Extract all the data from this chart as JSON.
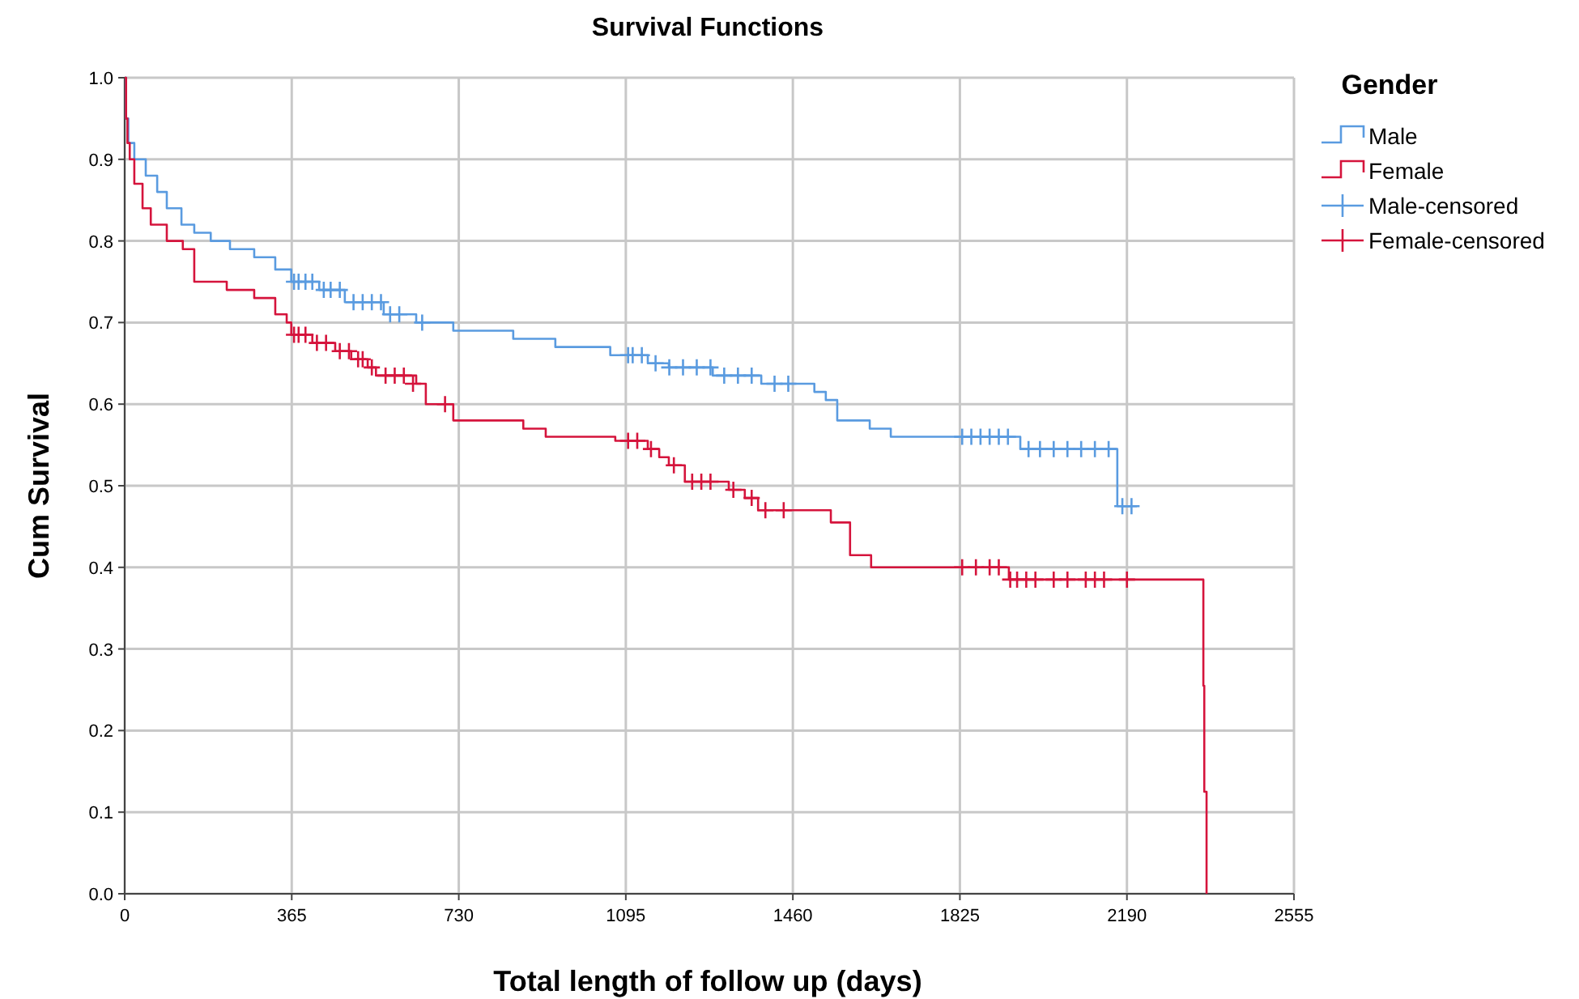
{
  "chart_data": {
    "type": "step",
    "title": "Survival Functions",
    "xlabel": "Total length of follow up (days)",
    "ylabel": "Cum Survival",
    "legend_title": "Gender",
    "legend": "right",
    "grid": true,
    "xlim": [
      0,
      2555
    ],
    "xticks": [
      0,
      365,
      730,
      1095,
      1460,
      1825,
      2190,
      2555
    ],
    "ylim": [
      0,
      1
    ],
    "yticks": [
      {
        "value": 0,
        "label": "0.0"
      },
      {
        "value": 0.1,
        "label": "0.1"
      },
      {
        "value": 0.2,
        "label": "0.2"
      },
      {
        "value": 0.3,
        "label": "0.3"
      },
      {
        "value": 0.4,
        "label": "0.4"
      },
      {
        "value": 0.5,
        "label": "0.5"
      },
      {
        "value": 0.6,
        "label": "0.6"
      },
      {
        "value": 0.7,
        "label": "0.7"
      },
      {
        "value": 0.8,
        "label": "0.8"
      },
      {
        "value": 0.9,
        "label": "0.9"
      },
      {
        "value": 1,
        "label": "1.0"
      }
    ],
    "series": [
      {
        "name": "Male",
        "color": "#5a9be0",
        "x": [
          0,
          3,
          8,
          21,
          46,
          71,
          92,
          124,
          152,
          188,
          230,
          283,
          329,
          364,
          425,
          481,
          566,
          637,
          718,
          849,
          941,
          1061,
          1143,
          1189,
          1285,
          1391,
          1507,
          1532,
          1557,
          1628,
          1674,
          1957,
          2169,
          2212
        ],
        "values": [
          1,
          0.95,
          0.92,
          0.9,
          0.88,
          0.86,
          0.84,
          0.82,
          0.81,
          0.8,
          0.79,
          0.78,
          0.765,
          0.75,
          0.74,
          0.725,
          0.71,
          0.7,
          0.69,
          0.68,
          0.67,
          0.66,
          0.65,
          0.645,
          0.635,
          0.625,
          0.615,
          0.605,
          0.58,
          0.57,
          0.56,
          0.545,
          0.475,
          0.475
        ]
      },
      {
        "name": "Female",
        "color": "#d5143c",
        "x": [
          0,
          3,
          6,
          11,
          21,
          39,
          57,
          92,
          127,
          152,
          223,
          283,
          329,
          354,
          364,
          410,
          460,
          495,
          531,
          549,
          637,
          658,
          718,
          871,
          920,
          1072,
          1143,
          1168,
          1189,
          1224,
          1320,
          1355,
          1384,
          1543,
          1585,
          1631,
          1932,
          2357,
          2359,
          2364
        ],
        "values": [
          1,
          0.95,
          0.92,
          0.9,
          0.87,
          0.84,
          0.82,
          0.8,
          0.79,
          0.75,
          0.74,
          0.73,
          0.71,
          0.7,
          0.685,
          0.675,
          0.665,
          0.655,
          0.645,
          0.635,
          0.625,
          0.6,
          0.58,
          0.57,
          0.56,
          0.555,
          0.545,
          0.535,
          0.525,
          0.505,
          0.495,
          0.485,
          0.47,
          0.455,
          0.415,
          0.4,
          0.385,
          0.255,
          0.125,
          0
        ]
      },
      {
        "name": "Male-censored",
        "type": "scatter",
        "marker": "cross",
        "color": "#5a9be0",
        "x": [
          370,
          380,
          395,
          410,
          435,
          450,
          470,
          500,
          520,
          540,
          560,
          580,
          600,
          650,
          1100,
          1110,
          1130,
          1160,
          1190,
          1220,
          1250,
          1280,
          1310,
          1340,
          1370,
          1420,
          1450,
          1830,
          1850,
          1870,
          1890,
          1910,
          1930,
          1975,
          2000,
          2030,
          2060,
          2090,
          2120,
          2150,
          2180,
          2200
        ],
        "values": [
          0.75,
          0.75,
          0.75,
          0.75,
          0.74,
          0.74,
          0.74,
          0.725,
          0.725,
          0.725,
          0.725,
          0.71,
          0.71,
          0.7,
          0.66,
          0.66,
          0.66,
          0.65,
          0.645,
          0.645,
          0.645,
          0.645,
          0.635,
          0.635,
          0.635,
          0.625,
          0.625,
          0.56,
          0.56,
          0.56,
          0.56,
          0.56,
          0.56,
          0.545,
          0.545,
          0.545,
          0.545,
          0.545,
          0.545,
          0.545,
          0.475,
          0.475
        ]
      },
      {
        "name": "Female-censored",
        "type": "scatter",
        "marker": "cross",
        "color": "#d5143c",
        "x": [
          370,
          380,
          395,
          420,
          440,
          470,
          490,
          510,
          520,
          540,
          570,
          590,
          610,
          630,
          700,
          1100,
          1120,
          1150,
          1200,
          1240,
          1260,
          1280,
          1330,
          1370,
          1400,
          1440,
          1830,
          1860,
          1890,
          1910,
          1935,
          1950,
          1970,
          1990,
          2030,
          2060,
          2100,
          2120,
          2140,
          2190
        ],
        "values": [
          0.685,
          0.685,
          0.685,
          0.675,
          0.675,
          0.665,
          0.665,
          0.655,
          0.655,
          0.645,
          0.635,
          0.635,
          0.635,
          0.625,
          0.6,
          0.555,
          0.555,
          0.545,
          0.525,
          0.505,
          0.505,
          0.505,
          0.495,
          0.485,
          0.47,
          0.47,
          0.4,
          0.4,
          0.4,
          0.4,
          0.385,
          0.385,
          0.385,
          0.385,
          0.385,
          0.385,
          0.385,
          0.385,
          0.385,
          0.385
        ]
      }
    ]
  }
}
